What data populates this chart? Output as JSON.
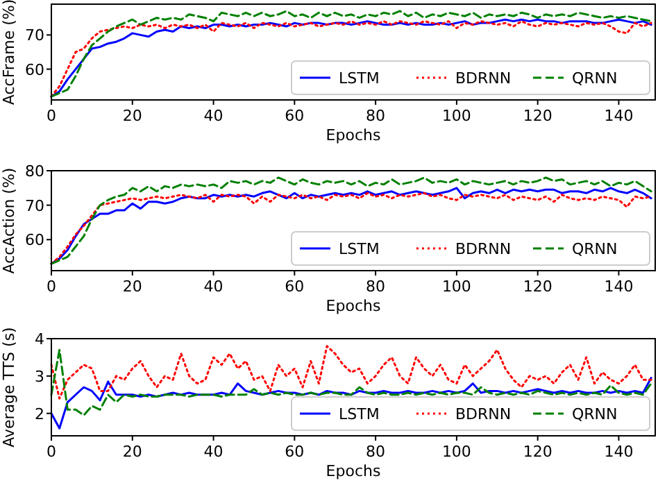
{
  "chart_data": [
    {
      "type": "line",
      "xlabel": "Epochs",
      "ylabel": "AccFrame (%)",
      "xlim": [
        0,
        149
      ],
      "xticks": [
        0,
        20,
        40,
        60,
        80,
        100,
        120,
        140
      ],
      "ylim": [
        51,
        79
      ],
      "yticks": [
        60,
        70
      ],
      "legend": "bottom right",
      "grid": false,
      "x": [
        0,
        2,
        4,
        6,
        8,
        10,
        12,
        14,
        16,
        18,
        20,
        22,
        24,
        26,
        28,
        30,
        32,
        34,
        36,
        38,
        40,
        42,
        44,
        46,
        48,
        50,
        52,
        54,
        56,
        58,
        60,
        62,
        64,
        66,
        68,
        70,
        72,
        74,
        76,
        78,
        80,
        82,
        84,
        86,
        88,
        90,
        92,
        94,
        96,
        98,
        100,
        102,
        104,
        106,
        108,
        110,
        112,
        114,
        116,
        118,
        120,
        122,
        124,
        126,
        128,
        130,
        132,
        134,
        136,
        138,
        140,
        142,
        144,
        146,
        148
      ],
      "series": [
        {
          "name": "LSTM",
          "color": "#0000ff",
          "line_style": "solid",
          "values": [
            52,
            53.5,
            57,
            60,
            63,
            66,
            66.5,
            67.5,
            68,
            69,
            70.5,
            70,
            69.5,
            71,
            71.5,
            71,
            72.5,
            72,
            72.5,
            72,
            73,
            73,
            72.5,
            73,
            72.5,
            73,
            73,
            73.5,
            73,
            72.5,
            73.5,
            73,
            73.5,
            73.5,
            73,
            73.5,
            73.5,
            73,
            73.5,
            74,
            73.5,
            73,
            73,
            73.5,
            73,
            73.5,
            73,
            73,
            73.5,
            73,
            73.5,
            74,
            73,
            73.5,
            73.5,
            74,
            74.5,
            74,
            74.5,
            74,
            74.5,
            74,
            74,
            73.5,
            74,
            74,
            74,
            73.5,
            73.5,
            74,
            74.5,
            74,
            73.5,
            74,
            73
          ]
        },
        {
          "name": "BDRNN",
          "color": "#ff0000",
          "line_style": "dotted",
          "values": [
            52,
            55,
            60,
            65,
            66,
            69,
            71,
            71.5,
            72,
            72.5,
            72,
            73,
            72.5,
            73,
            72,
            73,
            72.5,
            73,
            72,
            73,
            71,
            73.5,
            73,
            72.5,
            73.5,
            72,
            73.5,
            73,
            72.5,
            73.5,
            72.5,
            73,
            73.5,
            72.5,
            73,
            73.5,
            73,
            74,
            73,
            73.5,
            73,
            74,
            73,
            74,
            73.5,
            73,
            74,
            73.5,
            73,
            74,
            72,
            73.5,
            73,
            74,
            73.5,
            73,
            73.5,
            72.5,
            74,
            73,
            72.5,
            73.5,
            73,
            73.5,
            73,
            72.5,
            73.5,
            73,
            73.5,
            72.5,
            71,
            70.5,
            73.5,
            72.5,
            73.5
          ]
        },
        {
          "name": "QRNN",
          "color": "#008000",
          "line_style": "dashed",
          "values": [
            52,
            53,
            54,
            58,
            63,
            67,
            69,
            71,
            72.5,
            73.5,
            74.5,
            73,
            74,
            75,
            74.5,
            75,
            74.5,
            76,
            75.5,
            75,
            74,
            76.5,
            76,
            75.5,
            76.5,
            75.5,
            76.5,
            75.5,
            76,
            77,
            75.5,
            76,
            75,
            76.5,
            75.5,
            76.5,
            75.5,
            76,
            75,
            76,
            75.5,
            76.5,
            76,
            77,
            75.5,
            76.5,
            75,
            76,
            75.5,
            76.5,
            76,
            75.5,
            76.5,
            75,
            76,
            75.5,
            76,
            75.5,
            76.5,
            76,
            75,
            76,
            75.5,
            76,
            75.5,
            76.5,
            76,
            75.5,
            75,
            75.5,
            75,
            75.5,
            75,
            74.5,
            74
          ]
        }
      ]
    },
    {
      "type": "line",
      "xlabel": "Epochs",
      "ylabel": "AccAction (%)",
      "xlim": [
        0,
        149
      ],
      "xticks": [
        0,
        20,
        40,
        60,
        80,
        100,
        120,
        140
      ],
      "ylim": [
        51,
        80
      ],
      "yticks": [
        60,
        70,
        80
      ],
      "legend": "bottom right",
      "grid": false,
      "x": [
        0,
        2,
        4,
        6,
        8,
        10,
        12,
        14,
        16,
        18,
        20,
        22,
        24,
        26,
        28,
        30,
        32,
        34,
        36,
        38,
        40,
        42,
        44,
        46,
        48,
        50,
        52,
        54,
        56,
        58,
        60,
        62,
        64,
        66,
        68,
        70,
        72,
        74,
        76,
        78,
        80,
        82,
        84,
        86,
        88,
        90,
        92,
        94,
        96,
        98,
        100,
        102,
        104,
        106,
        108,
        110,
        112,
        114,
        116,
        118,
        120,
        122,
        124,
        126,
        128,
        130,
        132,
        134,
        136,
        138,
        140,
        142,
        144,
        146,
        148
      ],
      "series": [
        {
          "name": "LSTM",
          "color": "#0000ff",
          "line_style": "solid",
          "values": [
            53,
            54.5,
            57,
            61,
            64.5,
            66,
            67.5,
            67.5,
            68.5,
            68.5,
            70.5,
            69,
            71,
            71,
            70.5,
            71,
            72,
            72.5,
            72,
            72,
            73,
            72.5,
            73,
            72.5,
            73,
            72.5,
            73.5,
            74,
            73,
            72,
            73.5,
            72,
            73,
            72.5,
            73,
            73.5,
            73,
            73.5,
            73,
            74,
            73,
            73.5,
            74,
            73,
            73.5,
            74,
            73.5,
            73,
            73.5,
            74,
            75,
            72,
            73.5,
            74,
            73.5,
            74.5,
            73.5,
            74.5,
            74,
            74.5,
            74,
            74.5,
            74.5,
            73.5,
            74,
            74,
            73.5,
            74.5,
            74,
            75,
            74,
            73.5,
            74.5,
            73.5,
            72
          ]
        },
        {
          "name": "BDRNN",
          "color": "#ff0000",
          "line_style": "dotted",
          "values": [
            53,
            55,
            58,
            61.5,
            64,
            67,
            70,
            70.5,
            71,
            71.5,
            72,
            71.5,
            72,
            72.5,
            72,
            72.5,
            73,
            72.5,
            72,
            73,
            71,
            73,
            72.5,
            73,
            72.5,
            70.5,
            72.5,
            71,
            73,
            72.5,
            72,
            73,
            72,
            72.5,
            71.5,
            73,
            72.5,
            73,
            72,
            73.5,
            72.5,
            73,
            72,
            73,
            72.5,
            73,
            73.5,
            72.5,
            73,
            72,
            71.5,
            73,
            72.5,
            73,
            72.5,
            72,
            73,
            71.5,
            72.5,
            72,
            71.5,
            72.5,
            71,
            73,
            72,
            71.5,
            72,
            71.5,
            72.5,
            72,
            71.5,
            69.5,
            72.5,
            72,
            72.5
          ]
        },
        {
          "name": "QRNN",
          "color": "#008000",
          "line_style": "dashed",
          "values": [
            53,
            54,
            55,
            58,
            61,
            66,
            70,
            71.5,
            72.5,
            73,
            75,
            74,
            75.5,
            74,
            75.5,
            75,
            76,
            75.5,
            76,
            75.5,
            76,
            75,
            77,
            76.5,
            77,
            76,
            77,
            76.5,
            78,
            77,
            76,
            77.5,
            76.5,
            76,
            77,
            76.5,
            77,
            76,
            77,
            75.5,
            76.5,
            76,
            77.5,
            76,
            76.5,
            77,
            78,
            76.5,
            77,
            76.5,
            77.5,
            76,
            77,
            76.5,
            76,
            76.5,
            77,
            76,
            77,
            76.5,
            77,
            78,
            77,
            77.5,
            76,
            76.5,
            77,
            76,
            77,
            75.5,
            76.5,
            76,
            77,
            75.5,
            74
          ]
        }
      ]
    },
    {
      "type": "line",
      "xlabel": "Epochs",
      "ylabel": "Average TTS (s)",
      "xlim": [
        0,
        149
      ],
      "xticks": [
        0,
        20,
        40,
        60,
        80,
        100,
        120,
        140
      ],
      "ylim": [
        1.4,
        4
      ],
      "yticks": [
        2,
        3,
        4
      ],
      "legend": "bottom right",
      "grid": false,
      "x": [
        0,
        2,
        4,
        6,
        8,
        10,
        12,
        14,
        16,
        18,
        20,
        22,
        24,
        26,
        28,
        30,
        32,
        34,
        36,
        38,
        40,
        42,
        44,
        46,
        48,
        50,
        52,
        54,
        56,
        58,
        60,
        62,
        64,
        66,
        68,
        70,
        72,
        74,
        76,
        78,
        80,
        82,
        84,
        86,
        88,
        90,
        92,
        94,
        96,
        98,
        100,
        102,
        104,
        106,
        108,
        110,
        112,
        114,
        116,
        118,
        120,
        122,
        124,
        126,
        128,
        130,
        132,
        134,
        136,
        138,
        140,
        142,
        144,
        146,
        148
      ],
      "series": [
        {
          "name": "LSTM",
          "color": "#0000ff",
          "line_style": "solid",
          "values": [
            2.0,
            1.6,
            2.3,
            2.5,
            2.7,
            2.6,
            2.35,
            2.85,
            2.5,
            2.5,
            2.5,
            2.45,
            2.5,
            2.45,
            2.5,
            2.55,
            2.5,
            2.55,
            2.5,
            2.5,
            2.5,
            2.55,
            2.5,
            2.8,
            2.6,
            2.55,
            2.5,
            2.55,
            2.6,
            2.55,
            2.55,
            2.5,
            2.55,
            2.5,
            2.6,
            2.55,
            2.55,
            2.5,
            2.6,
            2.55,
            2.55,
            2.6,
            2.55,
            2.55,
            2.6,
            2.55,
            2.55,
            2.6,
            2.55,
            2.6,
            2.55,
            2.6,
            2.8,
            2.55,
            2.6,
            2.6,
            2.55,
            2.6,
            2.55,
            2.6,
            2.65,
            2.6,
            2.55,
            2.6,
            2.55,
            2.6,
            2.55,
            2.55,
            2.6,
            2.55,
            2.6,
            2.55,
            2.6,
            2.55,
            2.95
          ]
        },
        {
          "name": "BDRNN",
          "color": "#ff0000",
          "line_style": "dotted",
          "values": [
            3.3,
            2.4,
            2.9,
            3.1,
            3.3,
            3.2,
            2.6,
            2.6,
            3.0,
            2.9,
            3.2,
            3.4,
            3.0,
            2.7,
            3.0,
            2.9,
            3.6,
            3.0,
            2.8,
            2.9,
            3.5,
            3.3,
            3.6,
            3.2,
            3.4,
            2.9,
            3.0,
            2.6,
            3.3,
            3.0,
            3.2,
            2.7,
            3.4,
            2.8,
            3.8,
            3.6,
            3.3,
            3.1,
            3.2,
            2.8,
            3.0,
            3.3,
            3.5,
            3.0,
            2.8,
            3.5,
            3.2,
            3.0,
            3.3,
            2.9,
            2.8,
            3.3,
            3.0,
            3.2,
            3.4,
            3.7,
            3.2,
            2.9,
            2.7,
            3.0,
            2.9,
            3.0,
            2.8,
            3.1,
            3.3,
            2.9,
            3.5,
            2.8,
            3.1,
            2.9,
            2.8,
            3.0,
            3.3,
            2.9,
            2.9
          ]
        },
        {
          "name": "QRNN",
          "color": "#008000",
          "line_style": "dashed",
          "values": [
            2.5,
            3.7,
            2.1,
            2.1,
            1.95,
            2.2,
            2.1,
            2.5,
            2.3,
            2.5,
            2.45,
            2.5,
            2.45,
            2.45,
            2.5,
            2.5,
            2.5,
            2.45,
            2.5,
            2.5,
            2.5,
            2.45,
            2.5,
            2.5,
            2.5,
            2.65,
            2.5,
            2.55,
            2.5,
            2.55,
            2.5,
            2.5,
            2.55,
            2.5,
            2.55,
            2.55,
            2.5,
            2.5,
            2.7,
            2.55,
            2.5,
            2.55,
            2.5,
            2.5,
            2.55,
            2.5,
            2.55,
            2.5,
            2.55,
            2.5,
            2.55,
            2.55,
            2.5,
            2.7,
            2.55,
            2.5,
            2.55,
            2.5,
            2.55,
            2.5,
            2.6,
            2.55,
            2.5,
            2.55,
            2.5,
            2.55,
            2.5,
            2.55,
            2.5,
            2.75,
            2.55,
            2.5,
            2.55,
            2.5,
            2.8
          ]
        }
      ]
    }
  ]
}
